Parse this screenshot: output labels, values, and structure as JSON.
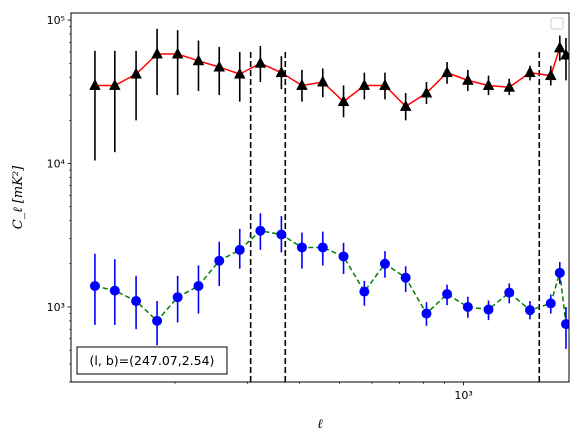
{
  "chart_data": {
    "type": "scatter",
    "xscale": "log",
    "yscale": "log",
    "xlim": [
      112,
      1800
    ],
    "ylim": [
      300,
      112000
    ],
    "xlabel": "ℓ",
    "ylabel": "C_ℓ  [mK²]",
    "x_ticks": [
      {
        "value": 1000,
        "label": "10³"
      }
    ],
    "y_ticks": [
      {
        "value": 1000,
        "label": "10³"
      },
      {
        "value": 10000,
        "label": "10⁴"
      },
      {
        "value": 100000,
        "label": "10⁵"
      }
    ],
    "annotation": "(l, b)=(247.07,2.54)",
    "legend": {
      "placement": "top-right",
      "entries": []
    },
    "vlines": [
      {
        "x": 305,
        "ymin": 300,
        "ymax": 60000,
        "color": "#000000",
        "style": "dashed"
      },
      {
        "x": 370,
        "ymin": 300,
        "ymax": 60000,
        "color": "#000000",
        "style": "dashed"
      },
      {
        "x": 1525,
        "ymin": 300,
        "ymax": 60000,
        "color": "#000000",
        "style": "dashed"
      }
    ],
    "series": [
      {
        "marker": "triangle",
        "color": "#000000",
        "line_color": "#ff0000",
        "line_style": "solid",
        "error_color": "#000000",
        "x": [
          128,
          143,
          161,
          181,
          203,
          228,
          256,
          287,
          322,
          362,
          406,
          456,
          512,
          575,
          645,
          724,
          813,
          912,
          1024,
          1149,
          1290,
          1448,
          1626,
          1710,
          1770
        ],
        "y": [
          35000,
          35000,
          42000,
          58000,
          58000,
          52000,
          47000,
          42000,
          50000,
          43000,
          35000,
          37000,
          27000,
          35000,
          35000,
          25000,
          31000,
          43000,
          38000,
          35000,
          34000,
          43000,
          41000,
          64000,
          57000
        ],
        "y_low": [
          10500,
          12000,
          20000,
          30000,
          30000,
          32000,
          30000,
          27000,
          37000,
          33000,
          27000,
          29000,
          21000,
          28000,
          28000,
          20000,
          26000,
          36000,
          32000,
          30000,
          30000,
          38000,
          35000,
          52000,
          38000
        ],
        "y_high": [
          61000,
          61000,
          61000,
          87000,
          85000,
          72000,
          65000,
          60000,
          66000,
          56000,
          45000,
          46000,
          35000,
          43000,
          43000,
          31000,
          37000,
          51000,
          45000,
          41000,
          39000,
          48000,
          48000,
          78000,
          75000
        ]
      },
      {
        "marker": "circle",
        "color": "#0000ff",
        "line_color": "#008000",
        "line_style": "dashed",
        "error_color": "#0000ff",
        "x": [
          128,
          143,
          161,
          181,
          203,
          228,
          256,
          287,
          322,
          362,
          406,
          456,
          512,
          575,
          645,
          724,
          813,
          912,
          1024,
          1149,
          1290,
          1448,
          1626,
          1710,
          1770
        ],
        "y": [
          1400,
          1300,
          1100,
          800,
          1170,
          1400,
          2100,
          2500,
          3400,
          3200,
          2600,
          2600,
          2250,
          1280,
          2000,
          1600,
          900,
          1230,
          1000,
          960,
          1260,
          950,
          1060,
          1730,
          760
        ],
        "y_low": [
          750,
          750,
          700,
          540,
          780,
          900,
          1400,
          1850,
          2500,
          2400,
          1850,
          1950,
          1700,
          1020,
          1600,
          1270,
          740,
          1030,
          840,
          810,
          1060,
          820,
          900,
          1450,
          510
        ],
        "y_high": [
          2350,
          2150,
          1650,
          1100,
          1650,
          1950,
          2850,
          3500,
          4500,
          4300,
          3300,
          3350,
          2800,
          1520,
          2450,
          1920,
          1080,
          1430,
          1180,
          1110,
          1460,
          1100,
          1220,
          2060,
          1000
        ]
      }
    ]
  }
}
